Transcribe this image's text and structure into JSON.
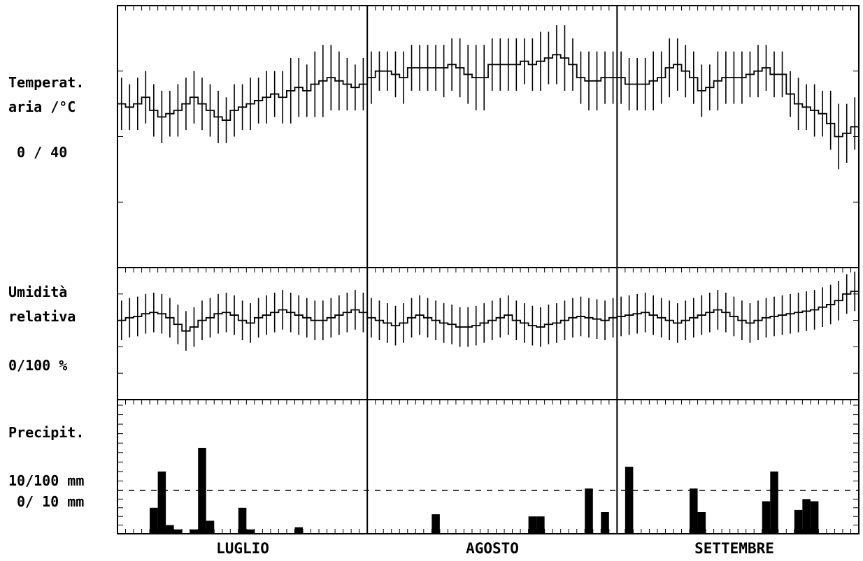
{
  "labels": {
    "temp": [
      "Temperat.",
      "aria /°C",
      "0 / 40"
    ],
    "hum": [
      "Umidità",
      "relativa",
      "0/100 %"
    ],
    "rain": [
      "Precipit.",
      "10/100 mm",
      "0/ 10 mm"
    ]
  },
  "months": [
    "LUGLIO",
    "AGOSTO",
    "SETTEMBRE"
  ],
  "chart_data": [
    {
      "type": "line",
      "panel": "temperature",
      "ylim": [
        0,
        40
      ],
      "x": "day index 1-92 (Jul 1 - Sep 30)",
      "mean": [
        25.0,
        24.5,
        25.0,
        26.0,
        24.0,
        23.0,
        23.5,
        24.0,
        25.0,
        26.0,
        25.0,
        24.0,
        23.0,
        22.5,
        24.0,
        24.5,
        25.0,
        25.5,
        26.0,
        26.5,
        26.0,
        27.0,
        27.5,
        27.0,
        28.0,
        28.5,
        29.0,
        28.5,
        28.0,
        27.5,
        28.0,
        29.0,
        30.0,
        30.0,
        29.5,
        29.0,
        30.5,
        30.5,
        30.5,
        30.5,
        30.5,
        31.0,
        30.5,
        29.5,
        29.0,
        29.0,
        31.0,
        31.0,
        31.0,
        31.0,
        31.5,
        31.0,
        31.5,
        32.0,
        32.5,
        32.0,
        31.0,
        29.0,
        28.5,
        28.5,
        29.0,
        29.0,
        29.0,
        28.0,
        28.0,
        28.0,
        28.5,
        29.0,
        30.5,
        31.0,
        30.0,
        29.0,
        27.0,
        27.5,
        28.5,
        29.0,
        29.0,
        29.0,
        29.5,
        30.0,
        30.5,
        29.5,
        29.5,
        26.5,
        25.0,
        24.5,
        24.0,
        23.5,
        22.0,
        20.0,
        20.5,
        21.5
      ],
      "max": [
        29,
        28,
        29,
        30,
        28,
        27,
        27,
        28,
        29,
        30,
        29,
        28,
        27,
        26,
        28,
        28,
        29,
        29,
        30,
        30,
        30,
        32,
        32,
        31,
        33,
        34,
        34,
        33,
        32,
        31,
        32,
        33,
        33,
        33,
        33,
        33,
        34,
        34,
        34,
        34,
        34,
        35,
        35,
        34,
        34,
        34,
        35,
        35,
        35,
        35,
        35,
        35,
        36,
        36,
        37,
        37,
        35,
        33,
        33,
        33,
        33,
        33,
        33,
        32,
        32,
        32,
        33,
        33,
        35,
        35,
        34,
        33,
        31,
        31,
        33,
        33,
        33,
        33,
        33,
        34,
        34,
        33,
        33,
        30,
        29,
        28,
        28,
        27,
        27,
        25,
        25,
        26
      ],
      "min": [
        21,
        21,
        21,
        22,
        20,
        19,
        20,
        20,
        21,
        22,
        21,
        20,
        19,
        19,
        20,
        21,
        21,
        22,
        22,
        23,
        22,
        22,
        23,
        23,
        23,
        23,
        24,
        24,
        24,
        24,
        24,
        25,
        27,
        27,
        26,
        25,
        27,
        27,
        27,
        27,
        26,
        27,
        26,
        25,
        24,
        24,
        27,
        27,
        27,
        27,
        28,
        27,
        27,
        28,
        28,
        27,
        27,
        25,
        24,
        24,
        25,
        25,
        25,
        24,
        24,
        24,
        24,
        25,
        26,
        27,
        26,
        25,
        23,
        24,
        24,
        25,
        25,
        25,
        26,
        26,
        27,
        26,
        26,
        23,
        21,
        21,
        20,
        20,
        18,
        15,
        16,
        18
      ]
    },
    {
      "type": "line",
      "panel": "humidity",
      "ylim": [
        0,
        100
      ],
      "mean": [
        60,
        62,
        63,
        65,
        66,
        65,
        62,
        57,
        52,
        55,
        60,
        62,
        65,
        66,
        64,
        60,
        58,
        62,
        64,
        66,
        68,
        66,
        64,
        62,
        60,
        60,
        62,
        64,
        66,
        68,
        66,
        62,
        60,
        58,
        56,
        58,
        62,
        64,
        62,
        60,
        58,
        57,
        55,
        55,
        56,
        58,
        60,
        62,
        64,
        60,
        58,
        56,
        55,
        57,
        58,
        60,
        62,
        63,
        62,
        61,
        60,
        62,
        63,
        64,
        65,
        66,
        64,
        62,
        60,
        58,
        60,
        62,
        64,
        66,
        68,
        66,
        63,
        60,
        58,
        60,
        62,
        63,
        64,
        65,
        66,
        67,
        68,
        70,
        72,
        75,
        80,
        82
      ],
      "max": [
        75,
        77,
        78,
        80,
        81,
        80,
        77,
        72,
        67,
        70,
        75,
        77,
        80,
        81,
        79,
        75,
        73,
        77,
        79,
        81,
        83,
        81,
        79,
        77,
        75,
        75,
        77,
        79,
        81,
        83,
        81,
        77,
        75,
        73,
        71,
        73,
        77,
        79,
        77,
        75,
        73,
        72,
        70,
        70,
        71,
        73,
        75,
        77,
        79,
        75,
        73,
        71,
        70,
        72,
        73,
        75,
        77,
        78,
        77,
        76,
        75,
        77,
        78,
        79,
        80,
        81,
        79,
        77,
        75,
        73,
        75,
        77,
        79,
        81,
        83,
        81,
        78,
        75,
        73,
        75,
        77,
        78,
        79,
        80,
        81,
        82,
        83,
        85,
        87,
        90,
        95,
        97
      ],
      "min": [
        45,
        47,
        48,
        50,
        51,
        50,
        47,
        42,
        37,
        40,
        45,
        47,
        50,
        51,
        49,
        45,
        43,
        47,
        49,
        51,
        53,
        51,
        49,
        47,
        45,
        45,
        47,
        49,
        51,
        53,
        51,
        47,
        45,
        43,
        41,
        43,
        47,
        49,
        47,
        45,
        43,
        42,
        40,
        40,
        41,
        43,
        45,
        47,
        49,
        45,
        43,
        41,
        40,
        42,
        43,
        45,
        47,
        48,
        47,
        46,
        45,
        47,
        48,
        49,
        50,
        51,
        49,
        47,
        45,
        43,
        45,
        47,
        49,
        51,
        53,
        51,
        48,
        45,
        43,
        45,
        47,
        48,
        49,
        50,
        51,
        52,
        53,
        55,
        57,
        60,
        65,
        67
      ]
    },
    {
      "type": "bar",
      "panel": "precipitation",
      "scale_note": "lower part 0-10 mm, upper part 10-100 mm",
      "bars": [
        {
          "day": 5,
          "mm": 6
        },
        {
          "day": 6,
          "mm": 30
        },
        {
          "day": 7,
          "mm": 2
        },
        {
          "day": 8,
          "mm": 1
        },
        {
          "day": 10,
          "mm": 1
        },
        {
          "day": 11,
          "mm": 55
        },
        {
          "day": 12,
          "mm": 3
        },
        {
          "day": 16,
          "mm": 6
        },
        {
          "day": 17,
          "mm": 1
        },
        {
          "day": 23,
          "mm": 1.5
        },
        {
          "day": 40,
          "mm": 4.5
        },
        {
          "day": 52,
          "mm": 4
        },
        {
          "day": 53,
          "mm": 4
        },
        {
          "day": 59,
          "mm": 12
        },
        {
          "day": 61,
          "mm": 5
        },
        {
          "day": 64,
          "mm": 35
        },
        {
          "day": 72,
          "mm": 12
        },
        {
          "day": 73,
          "mm": 5
        },
        {
          "day": 81,
          "mm": 7.5
        },
        {
          "day": 82,
          "mm": 30
        },
        {
          "day": 85,
          "mm": 5.5
        },
        {
          "day": 86,
          "mm": 8
        },
        {
          "day": 87,
          "mm": 7.5
        }
      ]
    }
  ]
}
